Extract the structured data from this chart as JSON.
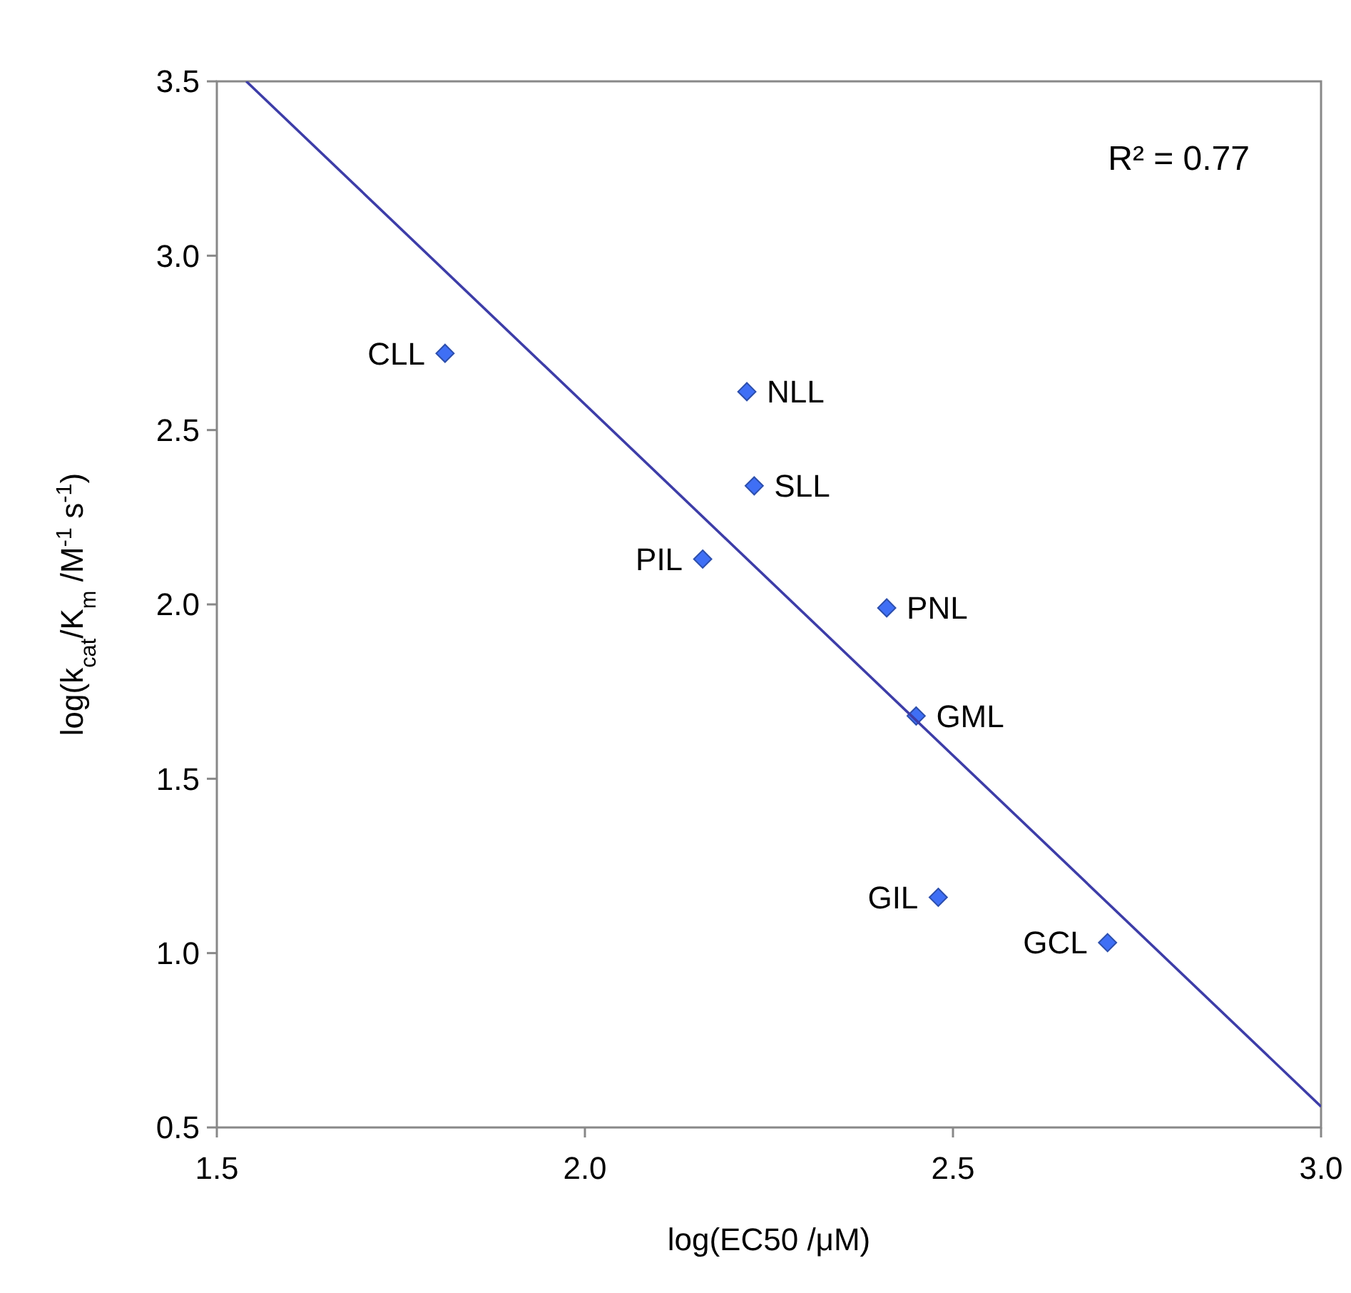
{
  "chart_data": {
    "type": "scatter",
    "xlabel": "log(EC50 /μM)",
    "ylabel": "log(k$_{cat}$/K$_{m}$ /M$^{-1}$ s$^{-1}$)",
    "xlim": [
      1.5,
      3.0
    ],
    "ylim": [
      0.5,
      3.5
    ],
    "xticks": [
      {
        "value": 1.5,
        "label": "1.5"
      },
      {
        "value": 2.0,
        "label": "2.0"
      },
      {
        "value": 2.5,
        "label": "2.5"
      },
      {
        "value": 3.0,
        "label": "3.0"
      }
    ],
    "yticks": [
      {
        "value": 0.5,
        "label": "0.5"
      },
      {
        "value": 1.0,
        "label": "1.0"
      },
      {
        "value": 1.5,
        "label": "1.5"
      },
      {
        "value": 2.0,
        "label": "2.0"
      },
      {
        "value": 2.5,
        "label": "2.5"
      },
      {
        "value": 3.0,
        "label": "3.0"
      },
      {
        "value": 3.5,
        "label": "3.5"
      }
    ],
    "grid": false,
    "series": [
      {
        "marker": "diamond",
        "color": "#3f6ff5",
        "x": [
          1.81,
          2.22,
          2.23,
          2.16,
          2.41,
          2.45,
          2.48,
          2.71
        ],
        "values": [
          2.72,
          2.61,
          2.34,
          2.13,
          1.99,
          1.68,
          1.16,
          1.03
        ]
      },
      {
        "type": "line",
        "marker": "none",
        "color": "#3d3da8",
        "x": [
          1.54,
          3.0
        ],
        "values": [
          3.5,
          0.56
        ]
      }
    ],
    "annotations": [
      {
        "text": "CLL",
        "x": 1.81,
        "y": 2.72
      },
      {
        "text": "NLL",
        "x": 2.22,
        "y": 2.61
      },
      {
        "text": "SLL",
        "x": 2.23,
        "y": 2.34
      },
      {
        "text": "PIL",
        "x": 2.16,
        "y": 2.13
      },
      {
        "text": "PNL",
        "x": 2.41,
        "y": 1.99
      },
      {
        "text": "GML",
        "x": 2.45,
        "y": 1.68
      },
      {
        "text": "GIL",
        "x": 2.48,
        "y": 1.16
      },
      {
        "text": "GCL",
        "x": 2.71,
        "y": 1.03
      },
      "R² = 0.77"
    ]
  }
}
